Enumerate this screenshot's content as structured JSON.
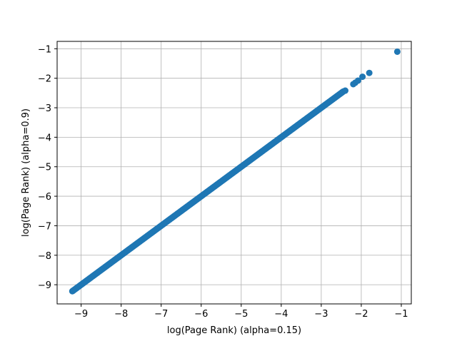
{
  "chart_data": {
    "type": "scatter",
    "title": "",
    "xlabel": "log(Page Rank) (alpha=0.15)",
    "ylabel": "log(Page Rank) (alpha=0.9)",
    "xlim": [
      -9.6,
      -0.75
    ],
    "ylim": [
      -9.65,
      -0.75
    ],
    "xticks": [
      -9,
      -8,
      -7,
      -6,
      -5,
      -4,
      -3,
      -2,
      -1
    ],
    "yticks": [
      -9,
      -8,
      -7,
      -6,
      -5,
      -4,
      -3,
      -2,
      -1
    ],
    "xtick_labels": [
      "−9",
      "−8",
      "−7",
      "−6",
      "−5",
      "−4",
      "−3",
      "−2",
      "−1"
    ],
    "ytick_labels": [
      "−9",
      "−8",
      "−7",
      "−6",
      "−5",
      "−4",
      "−3",
      "−2",
      "−1"
    ],
    "grid": true,
    "marker_color": "#1f77b4",
    "series": [
      {
        "dense_line": {
          "x_start": -9.22,
          "x_end": -2.45,
          "slope": 1.0,
          "intercept": 0.0,
          "count": 400
        },
        "points": [
          {
            "x": -9.2,
            "y": -9.2
          },
          {
            "x": -2.4,
            "y": -2.42
          },
          {
            "x": -2.2,
            "y": -2.2
          },
          {
            "x": -2.15,
            "y": -2.15
          },
          {
            "x": -2.08,
            "y": -2.08
          },
          {
            "x": -1.97,
            "y": -1.95
          },
          {
            "x": -1.8,
            "y": -1.82
          },
          {
            "x": -1.1,
            "y": -1.1
          }
        ]
      }
    ]
  }
}
